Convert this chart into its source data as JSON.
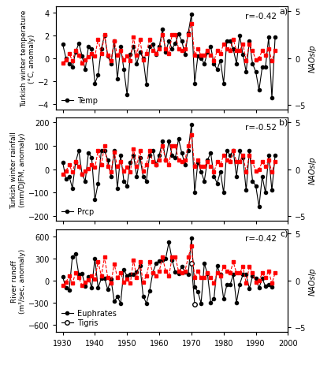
{
  "years": [
    1930,
    1931,
    1932,
    1933,
    1934,
    1935,
    1936,
    1937,
    1938,
    1939,
    1940,
    1941,
    1942,
    1943,
    1944,
    1945,
    1946,
    1947,
    1948,
    1949,
    1950,
    1951,
    1952,
    1953,
    1954,
    1955,
    1956,
    1957,
    1958,
    1959,
    1960,
    1961,
    1962,
    1963,
    1964,
    1965,
    1966,
    1967,
    1968,
    1969,
    1970,
    1971,
    1972,
    1973,
    1974,
    1975,
    1976,
    1977,
    1978,
    1979,
    1980,
    1981,
    1982,
    1983,
    1984,
    1985,
    1986,
    1987,
    1988,
    1989,
    1990,
    1991,
    1992,
    1993,
    1994,
    1995,
    1996
  ],
  "temp": [
    1.2,
    0.0,
    -0.5,
    -0.8,
    0.5,
    1.3,
    0.2,
    -1.0,
    1.0,
    0.8,
    -2.2,
    -1.5,
    0.8,
    2.0,
    0.2,
    -0.5,
    1.5,
    -1.8,
    1.0,
    -1.0,
    -3.2,
    0.3,
    1.0,
    -0.5,
    0.5,
    0.0,
    -2.3,
    1.0,
    1.2,
    0.3,
    1.0,
    2.5,
    0.5,
    1.5,
    0.8,
    1.3,
    2.1,
    1.5,
    0.3,
    2.2,
    3.8,
    -2.2,
    0.2,
    0.0,
    -0.5,
    0.5,
    1.0,
    -0.5,
    -1.0,
    -0.2,
    -2.2,
    1.5,
    1.5,
    0.8,
    -0.5,
    2.0,
    0.3,
    -1.2,
    1.5,
    -0.5,
    -1.2,
    -2.8,
    -0.8,
    -0.8,
    1.8,
    -3.5,
    1.8
  ],
  "nao_a": [
    -0.5,
    -0.2,
    0.5,
    -0.3,
    0.8,
    0.3,
    -0.5,
    -0.2,
    0.1,
    0.5,
    0.2,
    2.0,
    0.5,
    2.5,
    0.3,
    -0.3,
    1.8,
    0.3,
    0.8,
    -0.2,
    0.2,
    -0.3,
    2.2,
    0.3,
    2.0,
    -0.2,
    0.5,
    2.0,
    0.8,
    0.5,
    1.0,
    2.5,
    1.0,
    0.5,
    2.5,
    2.5,
    1.0,
    0.8,
    1.0,
    2.5,
    3.7,
    0.3,
    1.0,
    0.3,
    0.3,
    0.8,
    0.3,
    -0.3,
    0.8,
    0.5,
    1.5,
    1.0,
    0.8,
    2.0,
    0.8,
    0.8,
    1.5,
    -0.3,
    1.5,
    0.8,
    -0.2,
    0.0,
    0.8,
    0.3,
    1.0,
    -0.3,
    0.8
  ],
  "prcp": [
    30,
    -40,
    -30,
    -80,
    30,
    80,
    -20,
    -50,
    70,
    50,
    -130,
    -60,
    80,
    80,
    40,
    -30,
    80,
    -80,
    60,
    -50,
    -70,
    30,
    60,
    -30,
    50,
    -30,
    -50,
    60,
    80,
    20,
    60,
    120,
    40,
    120,
    60,
    50,
    130,
    70,
    20,
    80,
    190,
    -100,
    30,
    -10,
    -50,
    40,
    70,
    -30,
    -60,
    -10,
    -100,
    80,
    60,
    80,
    -30,
    80,
    50,
    -90,
    80,
    -50,
    -70,
    -160,
    -30,
    -100,
    60,
    -90,
    60
  ],
  "nao_b": [
    -0.5,
    -0.2,
    0.5,
    -0.3,
    0.8,
    0.3,
    -0.5,
    -0.2,
    0.1,
    0.5,
    0.2,
    2.0,
    0.5,
    2.5,
    0.3,
    -0.3,
    1.8,
    0.3,
    0.8,
    -0.2,
    0.2,
    -0.3,
    2.2,
    0.3,
    2.0,
    -0.2,
    0.5,
    2.0,
    0.8,
    0.5,
    1.0,
    2.5,
    1.0,
    0.5,
    2.5,
    2.5,
    1.0,
    0.8,
    1.0,
    2.5,
    3.7,
    0.3,
    1.0,
    0.3,
    0.3,
    0.8,
    0.3,
    -0.3,
    0.8,
    0.5,
    1.5,
    1.0,
    0.8,
    2.0,
    0.8,
    0.8,
    1.5,
    -0.3,
    1.5,
    0.8,
    -0.2,
    0.0,
    0.8,
    0.3,
    1.0,
    -0.3,
    0.8
  ],
  "euphrates": [
    50,
    -100,
    -130,
    320,
    360,
    80,
    100,
    -80,
    50,
    -100,
    300,
    -100,
    30,
    30,
    -120,
    20,
    -280,
    -220,
    -310,
    150,
    60,
    80,
    80,
    120,
    200,
    -210,
    -310,
    -140,
    110,
    230,
    270,
    280,
    300,
    520,
    280,
    120,
    100,
    190,
    120,
    80,
    580,
    -90,
    -150,
    -310,
    230,
    90,
    -300,
    -250,
    200,
    80,
    -250,
    -60,
    -60,
    80,
    -300,
    -50,
    80,
    80,
    -110,
    60,
    30,
    -100,
    30,
    -80,
    -60,
    -90,
    null
  ],
  "tigris": [
    null,
    null,
    null,
    null,
    null,
    null,
    null,
    null,
    null,
    null,
    null,
    null,
    null,
    null,
    null,
    null,
    null,
    null,
    null,
    null,
    null,
    null,
    null,
    null,
    null,
    null,
    null,
    null,
    null,
    null,
    null,
    null,
    null,
    null,
    null,
    null,
    null,
    null,
    null,
    null,
    230,
    -320,
    null,
    null,
    null,
    null,
    null,
    null,
    null,
    null,
    null,
    null,
    null,
    null,
    null,
    null,
    null,
    null,
    null,
    null,
    null,
    null,
    null,
    null,
    null,
    null,
    null
  ],
  "nao_c": [
    -0.5,
    -0.2,
    0.5,
    -0.3,
    0.8,
    0.3,
    -0.5,
    -0.2,
    0.1,
    0.5,
    0.2,
    2.0,
    0.5,
    2.5,
    0.3,
    -0.3,
    1.8,
    0.3,
    0.8,
    -0.2,
    0.2,
    -0.3,
    2.2,
    0.3,
    2.0,
    -0.2,
    0.5,
    2.0,
    0.8,
    0.5,
    1.0,
    2.5,
    1.0,
    0.5,
    2.5,
    2.5,
    1.0,
    0.8,
    1.0,
    2.5,
    3.7,
    0.3,
    1.0,
    0.3,
    0.3,
    0.8,
    0.3,
    -0.3,
    0.8,
    0.5,
    1.5,
    1.0,
    0.8,
    2.0,
    0.8,
    0.8,
    1.5,
    -0.3,
    1.5,
    0.8,
    -0.2,
    0.0,
    0.8,
    0.3,
    1.0,
    -0.3,
    0.8
  ],
  "xlim": [
    1928,
    2000
  ],
  "xticks": [
    1930,
    1940,
    1950,
    1960,
    1970,
    1980,
    1990,
    2000
  ],
  "panel_a": {
    "ylabel_left": "Turkish winter temperature\n(°C, anomaly)",
    "ylabel_right": "NAOslp",
    "ylim_left": [
      -4.5,
      4.5
    ],
    "ylim_right": [
      -5.5,
      5.5
    ],
    "yticks_left": [
      -4,
      -2,
      0,
      2,
      4
    ],
    "yticks_right": [
      -5,
      0,
      5
    ],
    "label": "a)",
    "r_text": "r=-0.42",
    "legend": "Temp"
  },
  "panel_b": {
    "ylabel_left": "Turkish winter rainfall\n(mm/DJFM, anomaly)",
    "ylabel_right": "NAOslp",
    "ylim_left": [
      -220,
      220
    ],
    "ylim_right": [
      -5.5,
      5.5
    ],
    "yticks_left": [
      -200,
      -100,
      0,
      100,
      200
    ],
    "yticks_right": [
      -5,
      0,
      5
    ],
    "label": "b)",
    "r_text": "r=-0.52",
    "legend": "Prcp"
  },
  "panel_c": {
    "ylabel_left": "River runoff\n(m³/sec, anomaly)",
    "ylabel_right": "NAOslp",
    "ylim_left": [
      -700,
      700
    ],
    "ylim_right": [
      -5.5,
      5.5
    ],
    "yticks_left": [
      -600,
      -300,
      0,
      300,
      600
    ],
    "yticks_right": [
      -5,
      0,
      5
    ],
    "label": "c)",
    "r_text": "r=-0.42",
    "legend_euphrates": "Euphrates",
    "legend_tigris": "Tigris"
  },
  "bg_color": "#f0f0f0",
  "line_color": "black",
  "nao_color": "red"
}
